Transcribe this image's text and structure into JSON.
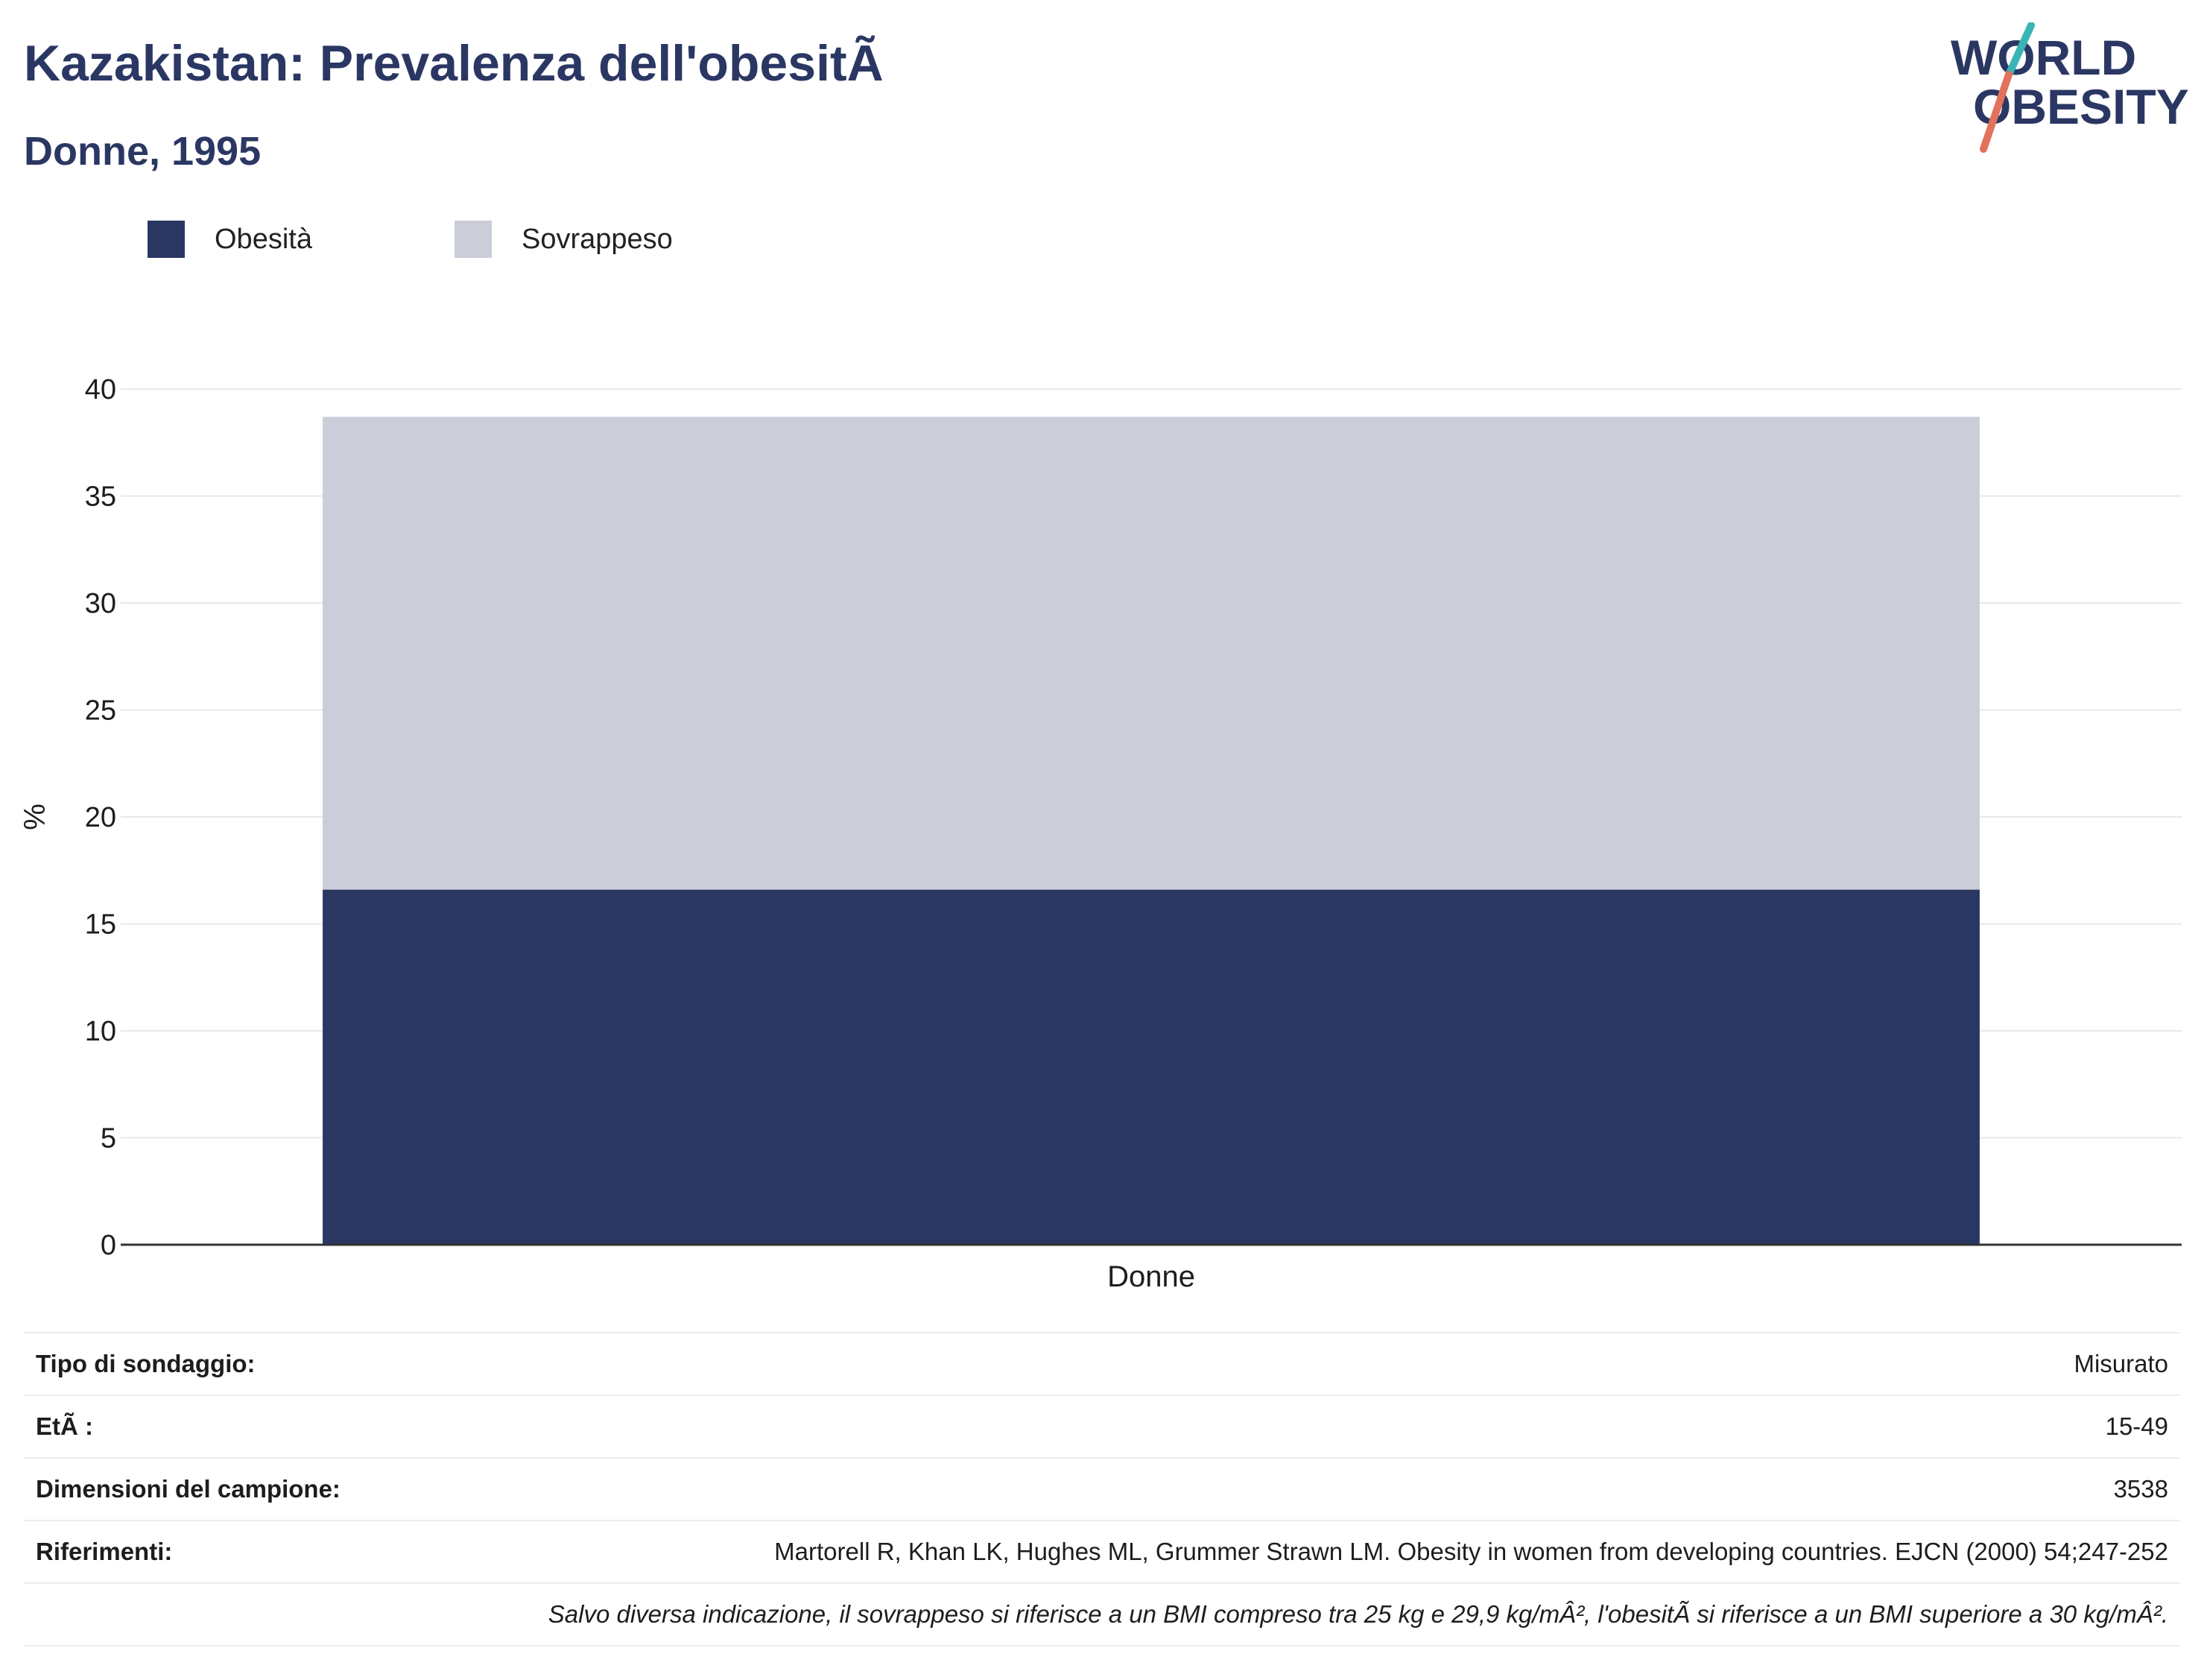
{
  "header": {
    "title": "Kazakistan: Prevalenza dell'obesitÃ",
    "subtitle": "Donne, 1995"
  },
  "logo": {
    "line1": "WORLD",
    "line2": "OBESITY",
    "text_color": "#2b3763",
    "slash_top_color": "#3ab5b5",
    "slash_bottom_color": "#e2725b"
  },
  "legend": {
    "items": [
      {
        "label": "Obesità",
        "color": "#2b3763"
      },
      {
        "label": "Sovrappeso",
        "color": "#cbcdd8"
      }
    ]
  },
  "chart_data": {
    "type": "bar",
    "stacked": true,
    "categories": [
      "Donne"
    ],
    "series": [
      {
        "name": "Obesità",
        "values": [
          16.6
        ],
        "color": "#2b3763"
      },
      {
        "name": "Sovrappeso",
        "values": [
          22.1
        ],
        "color": "#cbcdd8"
      }
    ],
    "xlabel": "",
    "ylabel": "%",
    "ylim": [
      0,
      40
    ],
    "yticks": [
      0,
      5,
      10,
      15,
      20,
      25,
      30,
      35,
      40
    ],
    "grid": true,
    "legend_position": "top-left"
  },
  "info": {
    "rows": [
      {
        "key": "Tipo di sondaggio:",
        "value": "Misurato"
      },
      {
        "key": "EtÃ :",
        "value": "15-49"
      },
      {
        "key": "Dimensioni del campione:",
        "value": "3538"
      },
      {
        "key": "Riferimenti:",
        "value": "Martorell R, Khan LK, Hughes ML, Grummer Strawn LM. Obesity in women from developing countries. EJCN (2000) 54;247-252"
      }
    ],
    "note": "Salvo diversa indicazione, il sovrappeso si riferisce a un BMI compreso tra 25 kg e 29,9 kg/mÂ², l'obesitÃ  si riferisce a un BMI superiore a 30 kg/mÂ²."
  }
}
